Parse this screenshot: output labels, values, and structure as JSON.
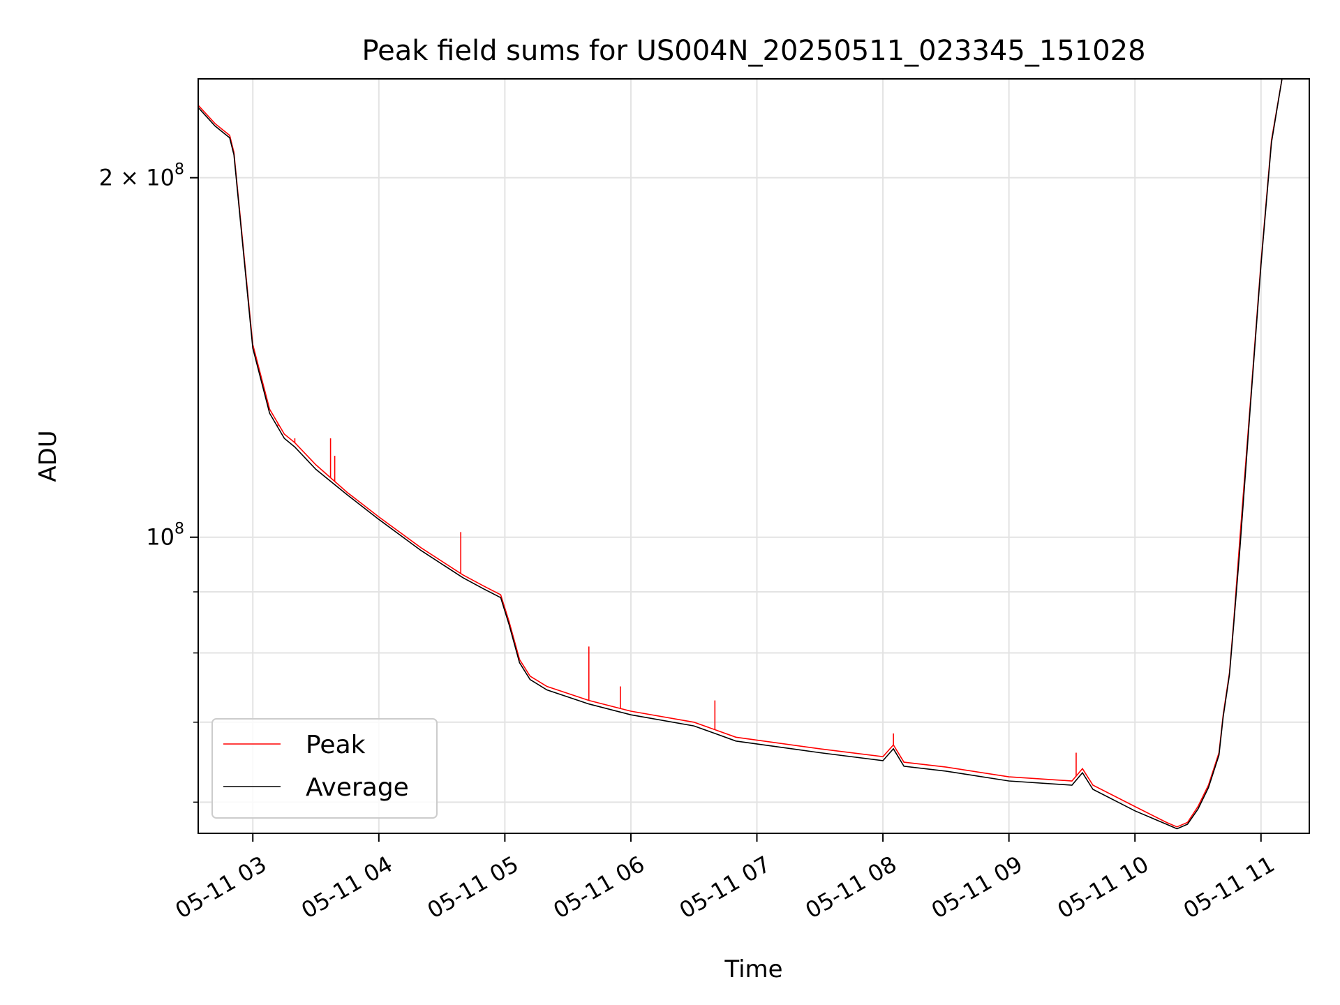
{
  "chart_data": {
    "type": "line",
    "title": "Peak field sums for US004N_20250511_023345_151028",
    "xlabel": "Time",
    "ylabel": "ADU",
    "yscale": "log",
    "grid": true,
    "legend_position": "lower-left",
    "xlim": [
      "05-11 02:34",
      "05-11 11:23"
    ],
    "ylim": [
      56500000,
      242000000
    ],
    "x_ticks": [
      "05-11 03",
      "05-11 04",
      "05-11 05",
      "05-11 06",
      "05-11 07",
      "05-11 08",
      "05-11 09",
      "05-11 10",
      "05-11 11"
    ],
    "y_tick_labels": [
      {
        "value": 100000000,
        "label_base": "10",
        "label_exp": "8"
      },
      {
        "value": 200000000,
        "label_base": "2 × 10",
        "label_exp": "8"
      }
    ],
    "y_minor_ticks": [
      60000000,
      70000000,
      80000000,
      90000000
    ],
    "series": [
      {
        "name": "Peak",
        "color": "#ff0000",
        "x": [
          "05-11 02:34",
          "05-11 02:42",
          "05-11 02:49",
          "05-11 02:51",
          "05-11 03:00",
          "05-11 03:08",
          "05-11 03:15",
          "05-11 03:20",
          "05-11 03:30",
          "05-11 03:45",
          "05-11 04:00",
          "05-11 04:20",
          "05-11 04:40",
          "05-11 04:50",
          "05-11 04:58",
          "05-11 05:02",
          "05-11 05:07",
          "05-11 05:12",
          "05-11 05:20",
          "05-11 05:40",
          "05-11 06:00",
          "05-11 06:30",
          "05-11 06:40",
          "05-11 06:50",
          "05-11 07:30",
          "05-11 08:00",
          "05-11 08:05",
          "05-11 08:10",
          "05-11 08:30",
          "05-11 09:00",
          "05-11 09:30",
          "05-11 09:35",
          "05-11 09:40",
          "05-11 10:00",
          "05-11 10:15",
          "05-11 10:20",
          "05-11 10:25",
          "05-11 10:30",
          "05-11 10:35",
          "05-11 10:40",
          "05-11 10:42",
          "05-11 10:45",
          "05-11 10:47",
          "05-11 10:50",
          "05-11 10:55",
          "05-11 11:00",
          "05-11 11:05",
          "05-11 11:10"
        ],
        "y": [
          230000000,
          222000000,
          217000000,
          210000000,
          145000000,
          128000000,
          122000000,
          120000000,
          115000000,
          109000000,
          104000000,
          98000000,
          93000000,
          91000000,
          89500000,
          85000000,
          79000000,
          76500000,
          75000000,
          73000000,
          71500000,
          70000000,
          69000000,
          68000000,
          66500000,
          65500000,
          67000000,
          64800000,
          64200000,
          63000000,
          62500000,
          64000000,
          62000000,
          59500000,
          57700000,
          57200000,
          57700000,
          59500000,
          62000000,
          66000000,
          71000000,
          77000000,
          85000000,
          100000000,
          130000000,
          170000000,
          215000000,
          242000000
        ],
        "spikes": [
          {
            "x": "05-11 03:12",
            "y": 124000000
          },
          {
            "x": "05-11 03:20",
            "y": 121000000
          },
          {
            "x": "05-11 03:37",
            "y": 121000000
          },
          {
            "x": "05-11 03:39",
            "y": 117000000
          },
          {
            "x": "05-11 04:39",
            "y": 101000000
          },
          {
            "x": "05-11 05:40",
            "y": 81000000
          },
          {
            "x": "05-11 05:55",
            "y": 75000000
          },
          {
            "x": "05-11 06:40",
            "y": 73000000
          },
          {
            "x": "05-11 08:05",
            "y": 68500000
          },
          {
            "x": "05-11 09:32",
            "y": 66000000
          }
        ]
      },
      {
        "name": "Average",
        "color": "#000000",
        "x": [
          "05-11 02:34",
          "05-11 02:42",
          "05-11 02:49",
          "05-11 02:51",
          "05-11 03:00",
          "05-11 03:08",
          "05-11 03:15",
          "05-11 03:20",
          "05-11 03:30",
          "05-11 03:45",
          "05-11 04:00",
          "05-11 04:20",
          "05-11 04:40",
          "05-11 04:50",
          "05-11 04:58",
          "05-11 05:02",
          "05-11 05:07",
          "05-11 05:12",
          "05-11 05:20",
          "05-11 05:40",
          "05-11 06:00",
          "05-11 06:30",
          "05-11 06:40",
          "05-11 06:50",
          "05-11 07:30",
          "05-11 08:00",
          "05-11 08:05",
          "05-11 08:10",
          "05-11 08:30",
          "05-11 09:00",
          "05-11 09:30",
          "05-11 09:35",
          "05-11 09:40",
          "05-11 10:00",
          "05-11 10:15",
          "05-11 10:20",
          "05-11 10:25",
          "05-11 10:30",
          "05-11 10:35",
          "05-11 10:40",
          "05-11 10:42",
          "05-11 10:45",
          "05-11 10:47",
          "05-11 10:50",
          "05-11 10:55",
          "05-11 11:00",
          "05-11 11:05",
          "05-11 11:10"
        ],
        "y": [
          229000000,
          221000000,
          216000000,
          209000000,
          144000000,
          127000000,
          121000000,
          119000000,
          114000000,
          108500000,
          103500000,
          97500000,
          92500000,
          90500000,
          89000000,
          84500000,
          78500000,
          76000000,
          74500000,
          72500000,
          71000000,
          69500000,
          68500000,
          67500000,
          66000000,
          65000000,
          66500000,
          64300000,
          63700000,
          62500000,
          62000000,
          63500000,
          61500000,
          59000000,
          57500000,
          57000000,
          57500000,
          59200000,
          61700000,
          65700000,
          70700000,
          76700000,
          84500000,
          98000000,
          129000000,
          169000000,
          214000000,
          242000000
        ]
      }
    ]
  }
}
